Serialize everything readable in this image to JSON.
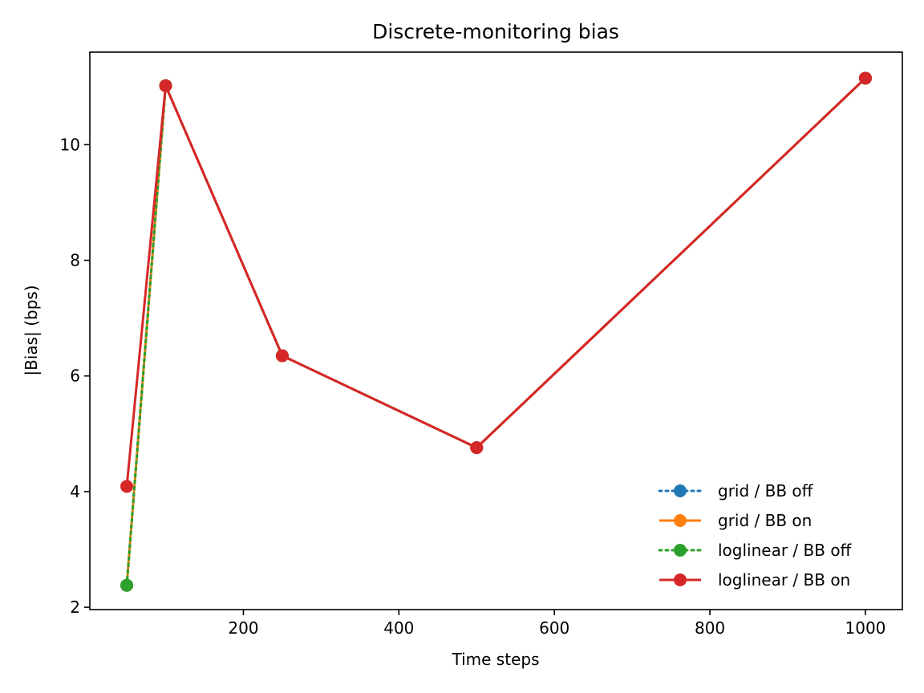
{
  "chart_data": {
    "type": "line",
    "title": "Discrete-monitoring bias",
    "xlabel": "Time steps",
    "ylabel": "|Bias| (bps)",
    "xlim": [
      2.5,
      1047.5
    ],
    "ylim": [
      1.96,
      11.6
    ],
    "xticks": [
      200,
      400,
      600,
      800,
      1000
    ],
    "yticks": [
      2,
      4,
      6,
      8,
      10
    ],
    "x": [
      50,
      100,
      250,
      500,
      1000
    ],
    "grid": false,
    "legend_position": "lower-right",
    "series": [
      {
        "name": "grid / BB off",
        "values": [
          2.38,
          11.02,
          6.35,
          4.76,
          11.15
        ],
        "color": "#1f77b4",
        "linestyle": "dotted"
      },
      {
        "name": "grid / BB on",
        "values": [
          2.38,
          11.02,
          6.35,
          4.76,
          11.15
        ],
        "color": "#ff7f0e",
        "linestyle": "solid"
      },
      {
        "name": "loglinear / BB off",
        "values": [
          2.38,
          11.02,
          6.35,
          4.76,
          11.15
        ],
        "color": "#2ca02c",
        "linestyle": "dotted"
      },
      {
        "name": "loglinear / BB on",
        "values": [
          4.09,
          11.02,
          6.35,
          4.76,
          11.15
        ],
        "color": "#d62728",
        "linestyle": "solid"
      }
    ]
  }
}
